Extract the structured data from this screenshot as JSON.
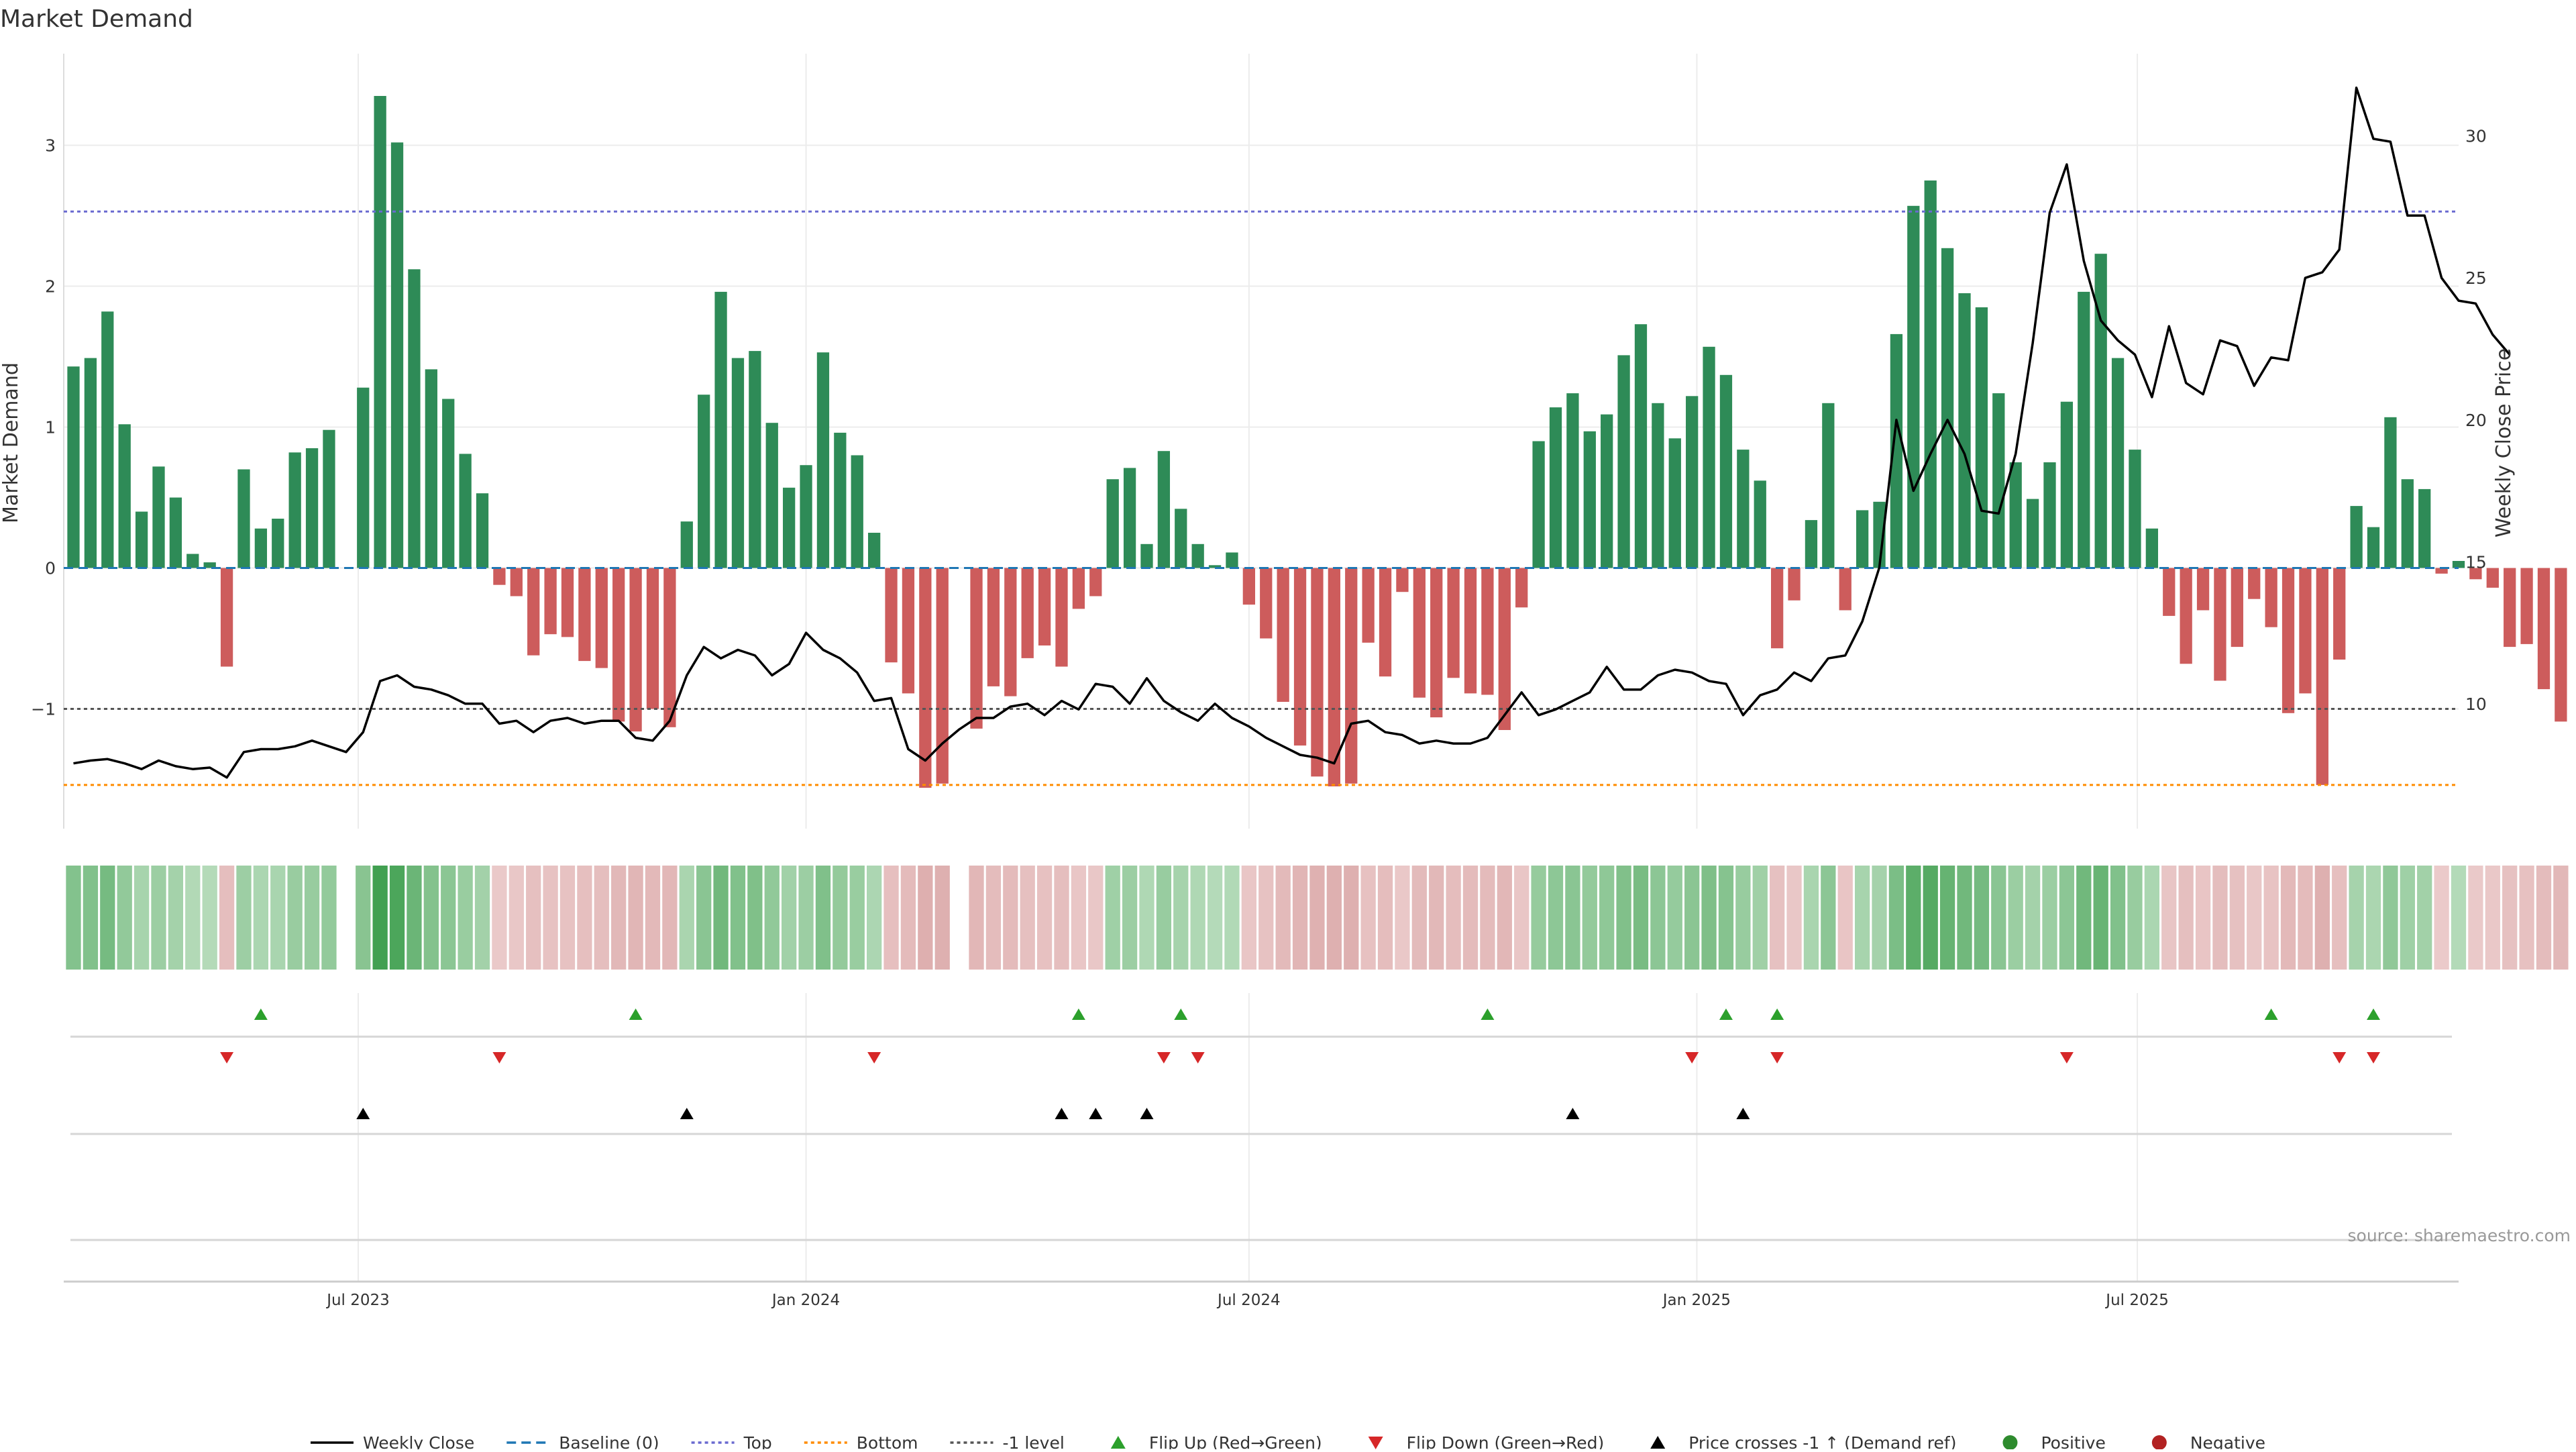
{
  "chart_data": {
    "type": "bar",
    "title": "Market Demand",
    "ylabel": "Market Demand",
    "y2label": "Weekly Close Price",
    "ylim": [
      -1.85,
      3.65
    ],
    "y2lim": [
      5.6,
      32.9
    ],
    "yticks": [
      -1,
      0,
      1,
      2,
      3
    ],
    "ytick_labels": [
      "−1",
      "0",
      "1",
      "2",
      "3"
    ],
    "y2ticks": [
      10,
      15,
      20,
      25,
      30
    ],
    "x_start": "2023-03-06",
    "x_step_days": 7,
    "x_range": [
      "2023-03-02",
      "2025-11-10"
    ],
    "xticks": [
      {
        "date": "2023-07-01",
        "label": "Jul 2023"
      },
      {
        "date": "2024-01-01",
        "label": "Jan 2024"
      },
      {
        "date": "2024-07-01",
        "label": "Jul 2024"
      },
      {
        "date": "2025-01-01",
        "label": "Jan 2025"
      },
      {
        "date": "2025-07-01",
        "label": "Jul 2025"
      }
    ],
    "levels": {
      "baseline": 0,
      "top": 2.53,
      "bottom": -1.54,
      "minus_one": -1
    },
    "colors": {
      "positive": "#2e8b57",
      "negative": "#cd5c5c",
      "price": "#000000",
      "top": "#6a6ad0",
      "bottom": "#ff8c00",
      "baseline": "#1f77b4",
      "minus_one": "#555555",
      "flip_up": "#2ca02c",
      "flip_down": "#d62728",
      "cross": "#000000",
      "neg_dot": "#b22222",
      "grid": "#ececec",
      "source": "#999999"
    },
    "series": [
      {
        "name": "Market Demand",
        "values": [
          1.43,
          1.49,
          1.82,
          1.02,
          0.4,
          0.72,
          0.5,
          0.1,
          0.04,
          -0.7,
          0.7,
          0.28,
          0.35,
          0.82,
          0.85,
          0.98,
          0.0,
          1.28,
          3.35,
          3.02,
          2.12,
          1.41,
          1.2,
          0.81,
          0.53,
          -0.12,
          -0.2,
          -0.62,
          -0.47,
          -0.49,
          -0.66,
          -0.71,
          -1.09,
          -1.16,
          -1.0,
          -1.13,
          0.33,
          1.23,
          1.96,
          1.49,
          1.54,
          1.03,
          0.57,
          0.73,
          1.53,
          0.96,
          0.8,
          0.25,
          -0.67,
          -0.89,
          -1.56,
          -1.53,
          0.0,
          -1.14,
          -0.84,
          -0.91,
          -0.64,
          -0.55,
          -0.7,
          -0.29,
          -0.2,
          0.63,
          0.71,
          0.17,
          0.83,
          0.42,
          0.17,
          0.02,
          0.11,
          -0.26,
          -0.5,
          -0.95,
          -1.26,
          -1.48,
          -1.55,
          -1.53,
          -0.53,
          -0.77,
          -0.17,
          -0.92,
          -1.06,
          -0.78,
          -0.89,
          -0.9,
          -1.15,
          -0.28,
          0.9,
          1.14,
          1.24,
          0.97,
          1.09,
          1.51,
          1.73,
          1.17,
          0.92,
          1.22,
          1.57,
          1.37,
          0.84,
          0.62,
          -0.57,
          -0.23,
          0.34,
          1.17,
          -0.3,
          0.41,
          0.47,
          1.66,
          2.57,
          2.75,
          2.27,
          1.95,
          1.85,
          1.24,
          0.75,
          0.49,
          0.75,
          1.18,
          1.96,
          2.23,
          1.49,
          0.84,
          0.28,
          -0.34,
          -0.68,
          -0.3,
          -0.8,
          -0.56,
          -0.22,
          -0.42,
          -1.03,
          -0.89,
          -1.54,
          -0.65,
          0.44,
          0.29,
          1.07,
          0.63,
          0.56,
          -0.04,
          0.05,
          -0.08,
          -0.14,
          -0.56,
          -0.54,
          -0.86,
          -1.09
        ]
      },
      {
        "name": "Weekly Close",
        "values": [
          7.9,
          8.0,
          8.05,
          7.9,
          7.7,
          8.0,
          7.8,
          7.7,
          7.75,
          7.4,
          8.3,
          8.4,
          8.4,
          8.5,
          8.7,
          8.5,
          8.3,
          9.0,
          10.8,
          11.0,
          10.6,
          10.5,
          10.3,
          10.0,
          10.0,
          9.3,
          9.4,
          9.0,
          9.4,
          9.5,
          9.3,
          9.4,
          9.4,
          8.8,
          8.7,
          9.4,
          11.0,
          12.0,
          11.6,
          11.9,
          11.7,
          11.0,
          11.4,
          12.5,
          11.9,
          11.6,
          11.1,
          10.1,
          10.2,
          8.4,
          8.0,
          8.6,
          9.1,
          9.5,
          9.5,
          9.9,
          10.0,
          9.6,
          10.1,
          9.8,
          10.7,
          10.6,
          10.0,
          10.9,
          10.1,
          9.7,
          9.4,
          10.0,
          9.5,
          9.2,
          8.8,
          8.5,
          8.2,
          8.1,
          7.9,
          9.3,
          9.4,
          9.0,
          8.9,
          8.6,
          8.7,
          8.6,
          8.6,
          8.8,
          9.6,
          10.4,
          9.6,
          9.8,
          10.1,
          10.4,
          11.3,
          10.5,
          10.5,
          11.0,
          11.2,
          11.1,
          10.8,
          10.7,
          9.6,
          10.3,
          10.5,
          11.1,
          10.8,
          11.6,
          11.7,
          12.9,
          14.8,
          20.0,
          17.5,
          18.8,
          20.0,
          18.8,
          16.8,
          16.7,
          18.8,
          22.7,
          27.3,
          29.0,
          25.6,
          23.5,
          22.8,
          22.3,
          20.8,
          23.3,
          21.3,
          20.9,
          22.8,
          22.6,
          21.2,
          22.2,
          22.1,
          25.0,
          25.2,
          26.0,
          31.7,
          29.9,
          29.8,
          27.2,
          27.2,
          25.0,
          24.2,
          24.1,
          23.0,
          22.3
        ],
        "y_axis": "right"
      }
    ],
    "markers": {
      "flip_up": [
        "2023-05-22",
        "2023-10-23",
        "2024-04-22",
        "2024-06-03",
        "2024-10-07",
        "2025-01-13",
        "2025-02-03",
        "2025-08-25",
        "2025-10-06"
      ],
      "flip_down": [
        "2023-05-08",
        "2023-08-28",
        "2024-01-29",
        "2024-05-27",
        "2024-06-10",
        "2024-12-30",
        "2025-02-03",
        "2025-06-02",
        "2025-09-22",
        "2025-10-06"
      ],
      "price_cross": [
        "2023-07-03",
        "2023-11-13",
        "2024-04-15",
        "2024-04-29",
        "2024-05-20",
        "2024-11-11",
        "2025-01-20"
      ]
    },
    "legend": {
      "placement": "bottom-center",
      "entries": [
        "Weekly Close",
        "Baseline (0)",
        "Top",
        "Bottom",
        "-1 level",
        "Flip Up (Red→Green)",
        "Flip Down (Green→Red)",
        "Price crosses -1 ↑ (Demand ref)",
        "Positive",
        "Negative"
      ]
    },
    "source": "source: sharemaestro.com"
  }
}
